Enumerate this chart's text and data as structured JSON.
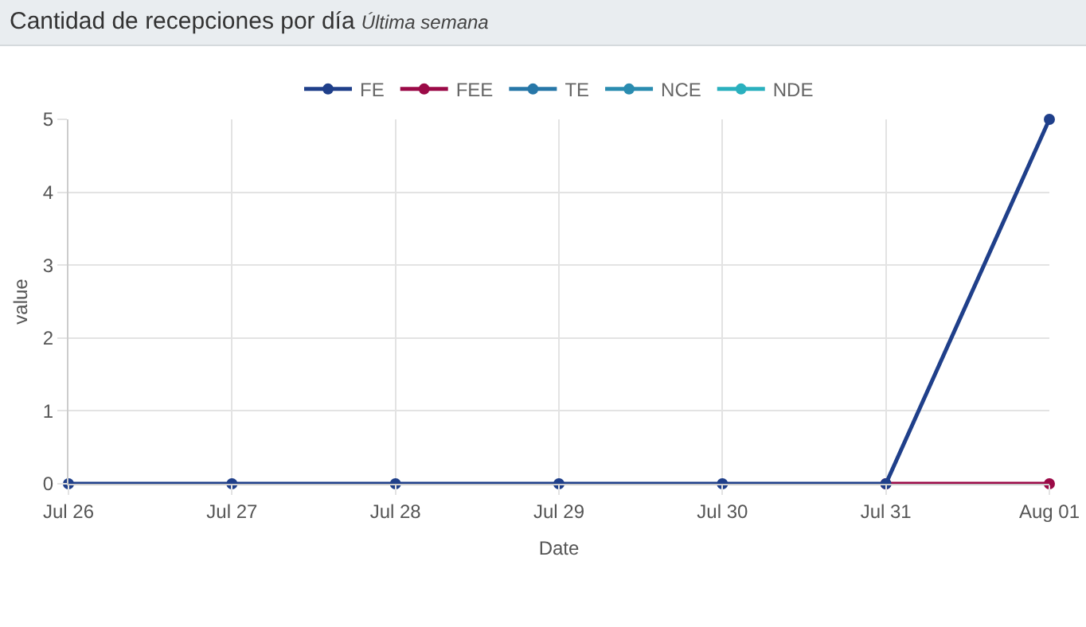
{
  "chart_data": {
    "type": "line",
    "title": "Cantidad de recepciones por día",
    "subtitle": "Última semana",
    "xlabel": "Date",
    "ylabel": "value",
    "x": [
      "--07-26",
      "--07-27",
      "--07-28",
      "--07-29",
      "--07-30",
      "--07-31",
      "--08-01"
    ],
    "series": [
      {
        "name": "FE",
        "color": "#1f3f8a",
        "values": [
          0,
          0,
          0,
          0,
          0,
          0,
          5
        ]
      },
      {
        "name": "FEE",
        "color": "#9b0a47",
        "values": [
          null,
          null,
          null,
          null,
          null,
          0,
          0
        ]
      },
      {
        "name": "TE",
        "color": "#2777a8",
        "values": [
          null,
          null,
          null,
          null,
          null,
          null,
          null
        ]
      },
      {
        "name": "NCE",
        "color": "#2a8cb0",
        "values": [
          null,
          null,
          null,
          null,
          null,
          null,
          null
        ]
      },
      {
        "name": "NDE",
        "color": "#2ab0be",
        "values": [
          null,
          null,
          null,
          null,
          null,
          null,
          null
        ]
      }
    ],
    "xlim": [
      "--07-26",
      "--08-01"
    ],
    "xticks": [
      {
        "value": "--07-26",
        "label": "Jul 26"
      },
      {
        "value": "--07-27",
        "label": "Jul 27"
      },
      {
        "value": "--07-28",
        "label": "Jul 28"
      },
      {
        "value": "--07-29",
        "label": "Jul 29"
      },
      {
        "value": "--07-30",
        "label": "Jul 30"
      },
      {
        "value": "--07-31",
        "label": "Jul 31"
      },
      {
        "value": "--08-01",
        "label": "Aug 01"
      }
    ],
    "ylim": [
      0,
      5
    ],
    "yticks": [
      0,
      1,
      2,
      3,
      4,
      5
    ],
    "grid": true,
    "legend": "top",
    "marker": "circle",
    "line_style": "solid"
  }
}
